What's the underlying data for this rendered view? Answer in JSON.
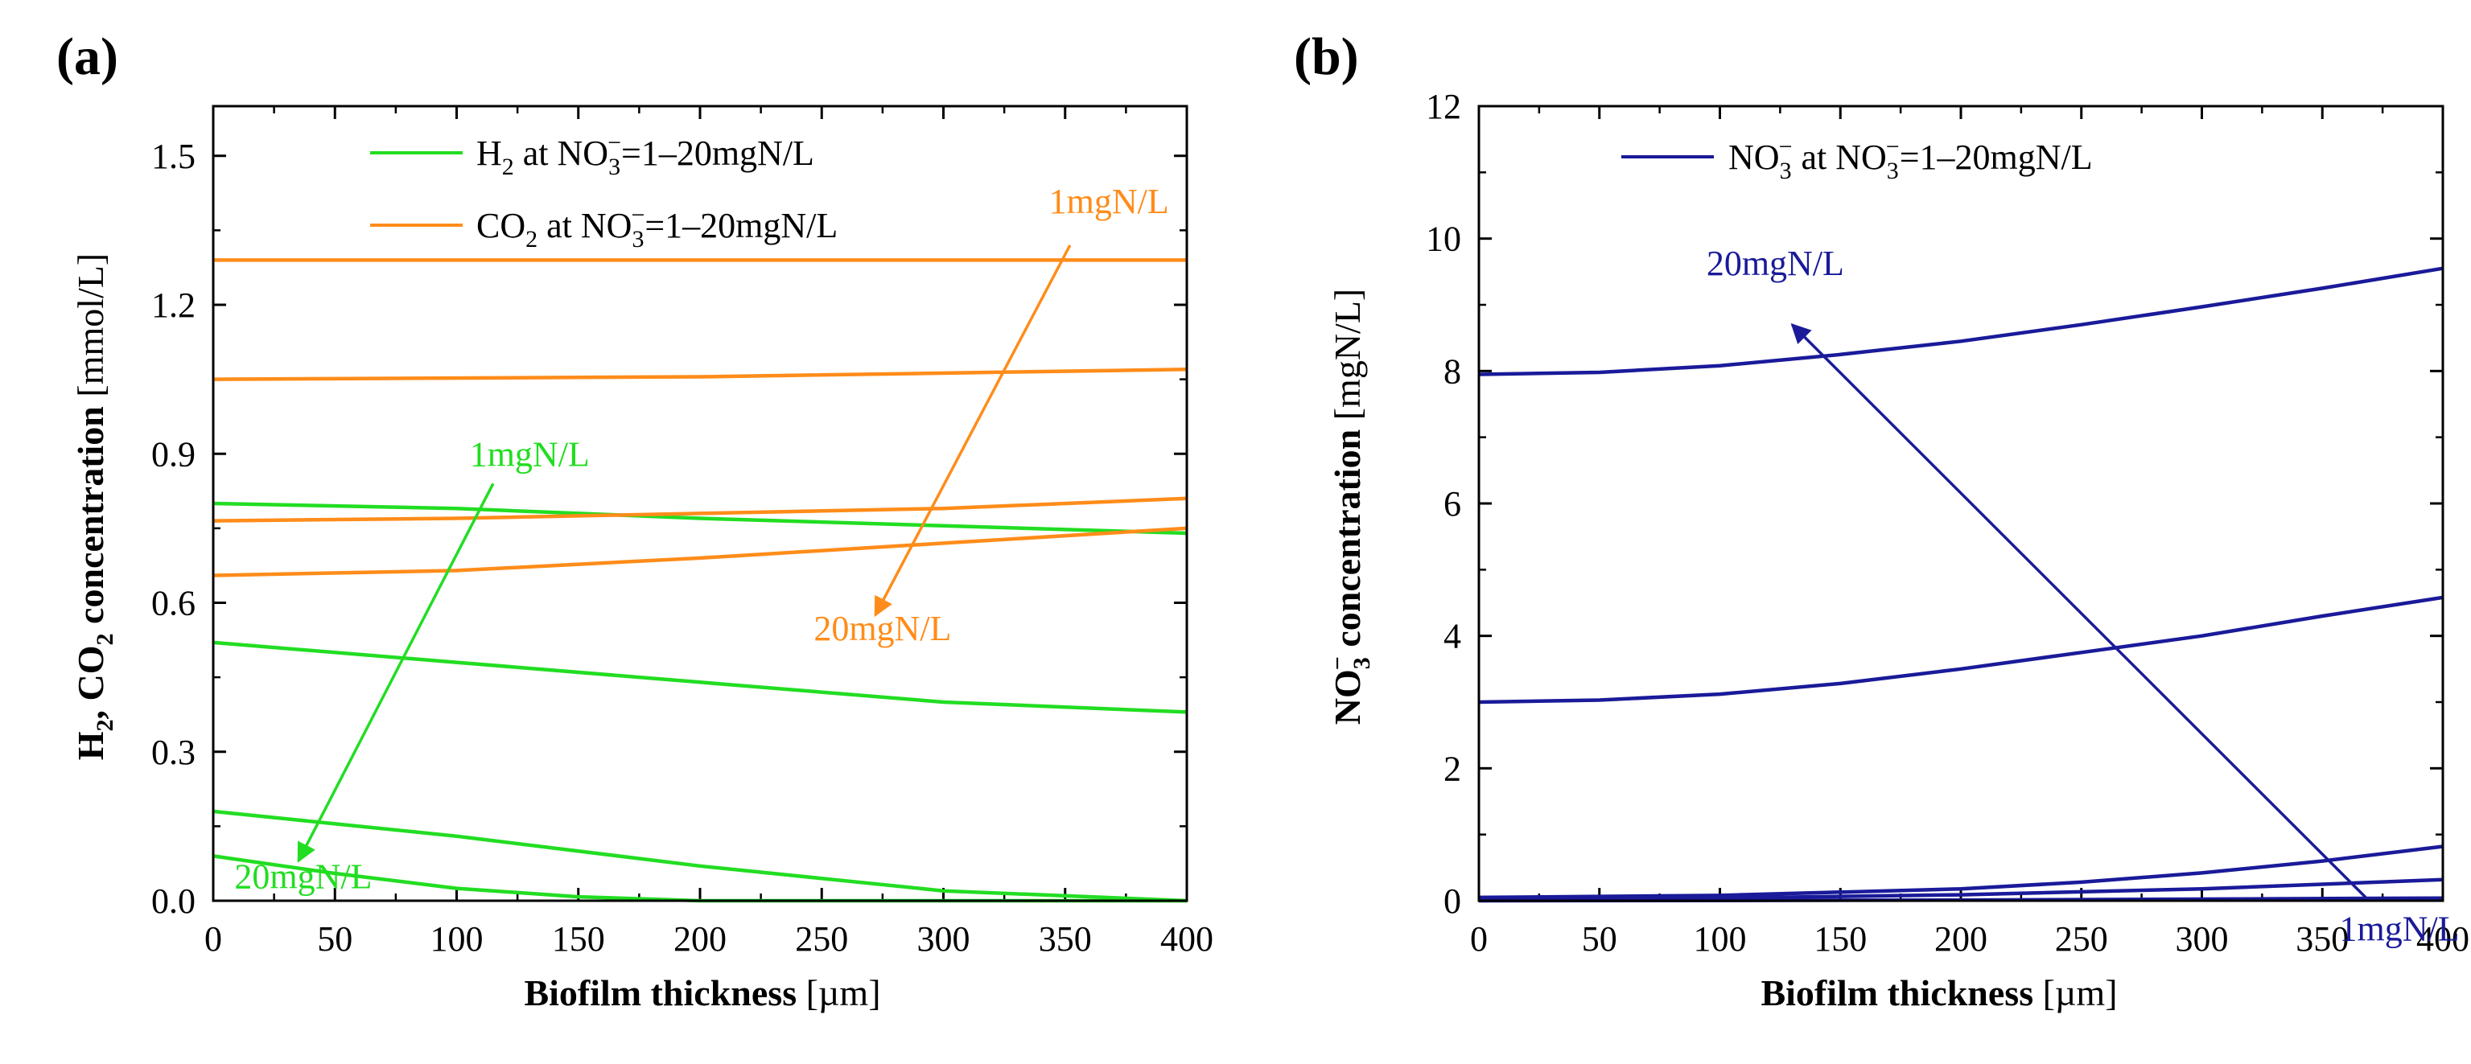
{
  "colors": {
    "green": "#22dd22",
    "orange": "#ff8c1a",
    "navy": "#1a1a9a",
    "axis": "#000000"
  },
  "chart_data": [
    {
      "type": "line",
      "panel_label": "(a)",
      "xlabel_bold": "Biofilm thickness",
      "xlabel_unit": " [µm]",
      "ylabel": {
        "h": "H",
        "h_sub": "2",
        "sep": ", CO",
        "c_sub": "2",
        "rest": " concentration",
        "unit": " [mmol/L]"
      },
      "xlim": [
        0,
        400
      ],
      "ylim": [
        0,
        1.6
      ],
      "xticks": [
        0,
        50,
        100,
        150,
        200,
        250,
        300,
        350,
        400
      ],
      "yticks": [
        0.0,
        0.3,
        0.6,
        0.9,
        1.2,
        1.5
      ],
      "ytick_labels": [
        "0.0",
        "0.3",
        "0.6",
        "0.9",
        "1.2",
        "1.5"
      ],
      "legend": [
        {
          "pre": "H",
          "sub": "2",
          "mid": " at NO",
          "sub2": "3",
          "sup2": "−",
          "post": "=1–20mgN/L",
          "color": "#22dd22"
        },
        {
          "pre": "CO",
          "sub": "2",
          "mid": " at NO",
          "sub2": "3",
          "sup2": "−",
          "post": "=1–20mgN/L",
          "color": "#ff8c1a"
        }
      ],
      "series": [
        {
          "name": "H2 1mgN/L",
          "color": "#22dd22",
          "x": [
            0,
            100,
            200,
            300,
            400
          ],
          "y": [
            0.8,
            0.79,
            0.77,
            0.755,
            0.74
          ]
        },
        {
          "name": "H2 5mgN/L",
          "color": "#22dd22",
          "x": [
            0,
            100,
            200,
            300,
            400
          ],
          "y": [
            0.52,
            0.48,
            0.44,
            0.4,
            0.38
          ]
        },
        {
          "name": "H2 10mgN/L",
          "color": "#22dd22",
          "x": [
            0,
            100,
            200,
            300,
            400
          ],
          "y": [
            0.18,
            0.13,
            0.07,
            0.02,
            0.0
          ]
        },
        {
          "name": "H2 20mgN/L",
          "color": "#22dd22",
          "x": [
            0,
            50,
            100,
            150,
            200,
            300,
            400
          ],
          "y": [
            0.09,
            0.055,
            0.025,
            0.008,
            0.0,
            0.0,
            0.0
          ]
        },
        {
          "name": "CO2 1mgN/L",
          "color": "#ff8c1a",
          "x": [
            0,
            400
          ],
          "y": [
            1.29,
            1.29
          ]
        },
        {
          "name": "CO2 5mgN/L",
          "color": "#ff8c1a",
          "x": [
            0,
            200,
            400
          ],
          "y": [
            1.05,
            1.055,
            1.07
          ]
        },
        {
          "name": "CO2 10mgN/L",
          "color": "#ff8c1a",
          "x": [
            0,
            100,
            200,
            300,
            400
          ],
          "y": [
            0.765,
            0.77,
            0.78,
            0.79,
            0.81
          ]
        },
        {
          "name": "CO2 20mgN/L",
          "color": "#ff8c1a",
          "x": [
            0,
            100,
            200,
            300,
            400
          ],
          "y": [
            0.655,
            0.665,
            0.69,
            0.72,
            0.75
          ]
        }
      ],
      "annotations": [
        {
          "text": "1mgN/L",
          "color": "#22dd22",
          "x": 130,
          "y": 0.875,
          "arrow_from": [
            115,
            0.84
          ],
          "arrow_to": [
            35,
            0.08
          ]
        },
        {
          "text": "20mgN/L",
          "color": "#22dd22",
          "x": 37,
          "y": 0.025
        },
        {
          "text": "1mgN/L",
          "color": "#ff8c1a",
          "x": 368,
          "y": 1.385,
          "arrow_from": [
            352,
            1.32
          ],
          "arrow_to": [
            272,
            0.575
          ]
        },
        {
          "text": "20mgN/L",
          "color": "#ff8c1a",
          "x": 275,
          "y": 0.525
        }
      ]
    },
    {
      "type": "line",
      "panel_label": "(b)",
      "xlabel_bold": "Biofilm thickness",
      "xlabel_unit": " [µm]",
      "ylabel": {
        "pre": "NO",
        "sub": "3",
        "sup": "−",
        "rest": " concentration",
        "unit": " [mgN/L]"
      },
      "xlim": [
        0,
        400
      ],
      "ylim": [
        0,
        12
      ],
      "xticks": [
        0,
        50,
        100,
        150,
        200,
        250,
        300,
        350,
        400
      ],
      "yticks": [
        0,
        2,
        4,
        6,
        8,
        10,
        12
      ],
      "ytick_labels": [
        "0",
        "2",
        "4",
        "6",
        "8",
        "10",
        "12"
      ],
      "legend": [
        {
          "pre": "NO",
          "sub": "3",
          "sup": "−",
          "mid": " at NO",
          "sub2": "3",
          "sup2": "−",
          "post": "=1–20mgN/L",
          "color": "#1a1a9a"
        }
      ],
      "series": [
        {
          "name": "NO3 20mgN/L",
          "color": "#1a1a9a",
          "x": [
            0,
            50,
            100,
            150,
            200,
            250,
            300,
            350,
            400
          ],
          "y": [
            7.95,
            7.98,
            8.08,
            8.25,
            8.45,
            8.7,
            8.97,
            9.25,
            9.55
          ]
        },
        {
          "name": "NO3 10mgN/L",
          "color": "#1a1a9a",
          "x": [
            0,
            50,
            100,
            150,
            200,
            250,
            300,
            350,
            400
          ],
          "y": [
            3.0,
            3.03,
            3.12,
            3.28,
            3.5,
            3.75,
            4.0,
            4.3,
            4.58
          ]
        },
        {
          "name": "NO3 5mgN/L",
          "color": "#1a1a9a",
          "x": [
            0,
            100,
            200,
            250,
            300,
            350,
            400
          ],
          "y": [
            0.05,
            0.08,
            0.18,
            0.28,
            0.42,
            0.6,
            0.82
          ]
        },
        {
          "name": "NO3 2mgN/L",
          "color": "#1a1a9a",
          "x": [
            0,
            100,
            200,
            300,
            400
          ],
          "y": [
            0.02,
            0.04,
            0.09,
            0.18,
            0.32
          ]
        },
        {
          "name": "NO3 1mgN/L",
          "color": "#1a1a9a",
          "x": [
            0,
            200,
            400
          ],
          "y": [
            0.0,
            0.01,
            0.04
          ]
        }
      ],
      "annotations": [
        {
          "text": "20mgN/L",
          "color": "#1a1a9a",
          "x": 123,
          "y": 9.45,
          "arrow_from": [
            368,
            0.05
          ],
          "arrow_to": [
            130,
            8.7
          ]
        },
        {
          "text": "1mgN/L",
          "color": "#1a1a9a",
          "x": 382,
          "y": -0.6
        }
      ]
    }
  ]
}
